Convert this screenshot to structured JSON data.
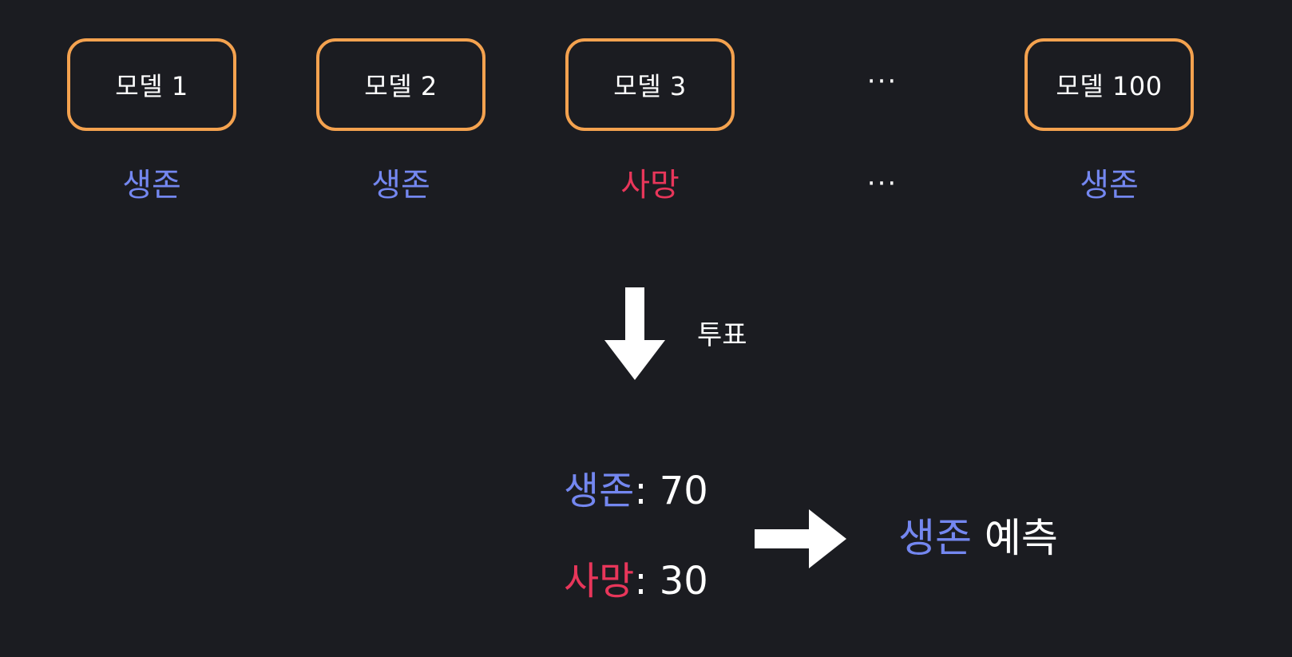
{
  "colors": {
    "background": "#1b1c21",
    "box_border": "#f4a24f",
    "survive": "#7487f0",
    "death": "#e8365a",
    "text": "#ffffff"
  },
  "models": [
    {
      "label": "모델 1",
      "outcome": "생존",
      "outcome_type": "survive"
    },
    {
      "label": "모델 2",
      "outcome": "생존",
      "outcome_type": "survive"
    },
    {
      "label": "모델 3",
      "outcome": "사망",
      "outcome_type": "death"
    },
    {
      "label": "모델 100",
      "outcome": "생존",
      "outcome_type": "survive"
    }
  ],
  "ellipsis": "···",
  "vote": {
    "icon": "down-arrow-icon",
    "label": "투표"
  },
  "tally": [
    {
      "label": "생존",
      "separator": ": ",
      "count": "70",
      "type": "survive"
    },
    {
      "label": "사망",
      "separator": ": ",
      "count": "30",
      "type": "death"
    }
  ],
  "result": {
    "icon": "right-arrow-icon",
    "label": "생존",
    "suffix": " 예측"
  }
}
